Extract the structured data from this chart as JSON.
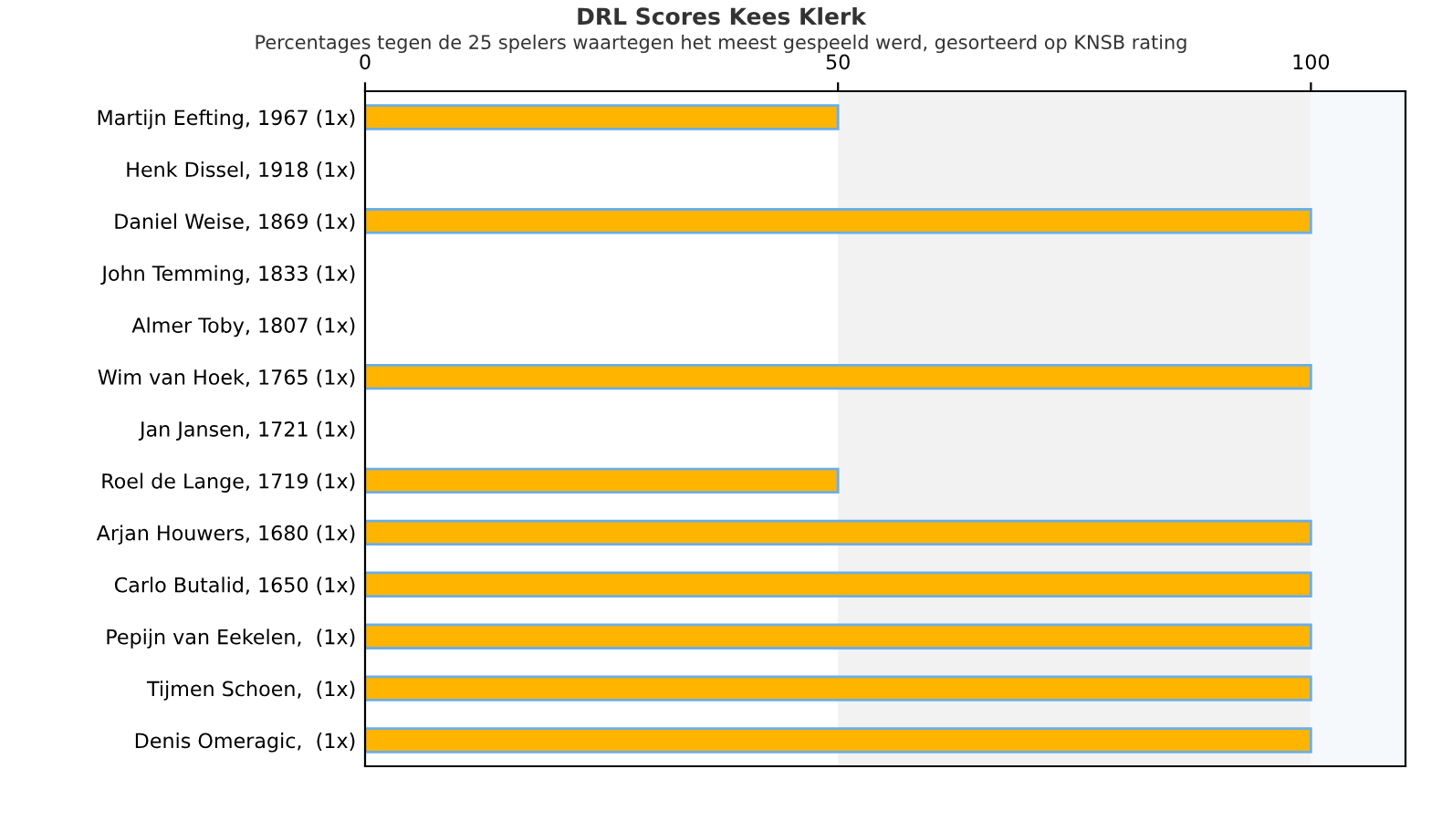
{
  "chart_data": {
    "type": "bar",
    "orientation": "horizontal",
    "title": "DRL Scores Kees Klerk",
    "subtitle": "Percentages tegen de 25 spelers waartegen het meest gespeeld werd, gesorteerd op KNSB rating",
    "categories": [
      "Martijn Eefting, 1967 (1x)",
      "Henk Dissel, 1918 (1x)",
      "Daniel Weise, 1869 (1x)",
      "John Temming, 1833 (1x)",
      "Almer Toby, 1807 (1x)",
      "Wim van Hoek, 1765 (1x)",
      "Jan Jansen, 1721 (1x)",
      "Roel de Lange, 1719 (1x)",
      "Arjan Houwers, 1680 (1x)",
      "Carlo Butalid, 1650 (1x)",
      "Pepijn van Eekelen,  (1x)",
      "Tijmen Schoen,  (1x)",
      "Denis Omeragic,  (1x)"
    ],
    "values": [
      50,
      0,
      100,
      0,
      0,
      100,
      0,
      50,
      100,
      100,
      100,
      100,
      100
    ],
    "color": "#ffb400",
    "xlim": [
      0,
      110
    ],
    "xticks": [
      0,
      50,
      100
    ],
    "bands": [
      {
        "axis": "x",
        "from": 50,
        "to": 100,
        "color": "#f2f2f2"
      },
      {
        "axis": "x",
        "from": 100,
        "to": 110,
        "color": "#f5f9fc"
      }
    ],
    "grid": false,
    "legend": false
  }
}
